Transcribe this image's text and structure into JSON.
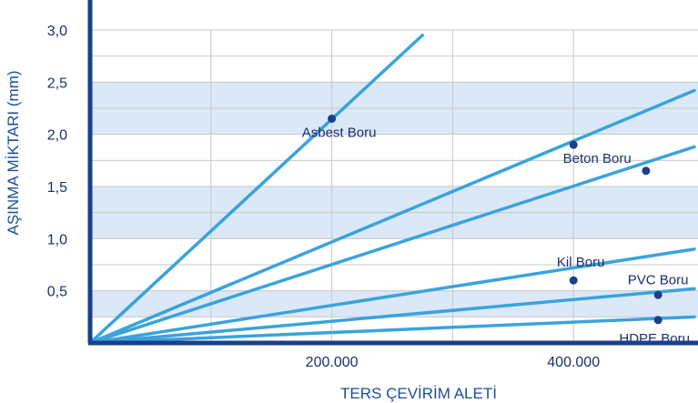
{
  "chart_data": {
    "type": "line",
    "xlabel": "TERS ÇEVİRİM ALETİ",
    "ylabel": "AŞINMA MİKTARI (mm)",
    "xlim": [
      0,
      500000
    ],
    "ylim": [
      0,
      3.0
    ],
    "x_ticks": [
      {
        "value": 200000,
        "label": "200.000"
      },
      {
        "value": 400000,
        "label": "400.000"
      }
    ],
    "y_ticks": [
      {
        "value": 0.5,
        "label": "0,5"
      },
      {
        "value": 1.0,
        "label": "1,0"
      },
      {
        "value": 1.5,
        "label": "1,5"
      },
      {
        "value": 2.0,
        "label": "2,0"
      },
      {
        "value": 2.5,
        "label": "2,5"
      },
      {
        "value": 3.0,
        "label": "3,0"
      }
    ],
    "grid": true,
    "colors": {
      "line": "#3aa3dc",
      "marker": "#1b3f8b",
      "band": "#dbe8f7",
      "axis": "#1b3f8b",
      "grid": "#c8c8c8",
      "tick_text": "#1c2f6b",
      "axis_title": "#1a4f96"
    },
    "series": [
      {
        "name": "Asbest Boru",
        "x": [
          0,
          275000
        ],
        "y": [
          0,
          2.95
        ],
        "marker": {
          "x": 200000,
          "y": 2.15
        }
      },
      {
        "name": "Beton Boru",
        "x": [
          0,
          500000
        ],
        "y": [
          0,
          2.42
        ],
        "marker": {
          "x": 400000,
          "y": 1.9
        }
      },
      {
        "name": "",
        "x": [
          0,
          500000
        ],
        "y": [
          0,
          1.88
        ],
        "marker": {
          "x": 460000,
          "y": 1.65
        }
      },
      {
        "name": "Kil Boru",
        "x": [
          0,
          500000
        ],
        "y": [
          0,
          0.9
        ],
        "marker": {
          "x": 400000,
          "y": 0.6
        }
      },
      {
        "name": "PVC Boru",
        "x": [
          0,
          500000
        ],
        "y": [
          0,
          0.52
        ],
        "marker": {
          "x": 470000,
          "y": 0.46
        }
      },
      {
        "name": "HDPE Boru",
        "x": [
          0,
          500000
        ],
        "y": [
          0,
          0.25
        ],
        "marker": {
          "x": 470000,
          "y": 0.22
        }
      }
    ]
  }
}
